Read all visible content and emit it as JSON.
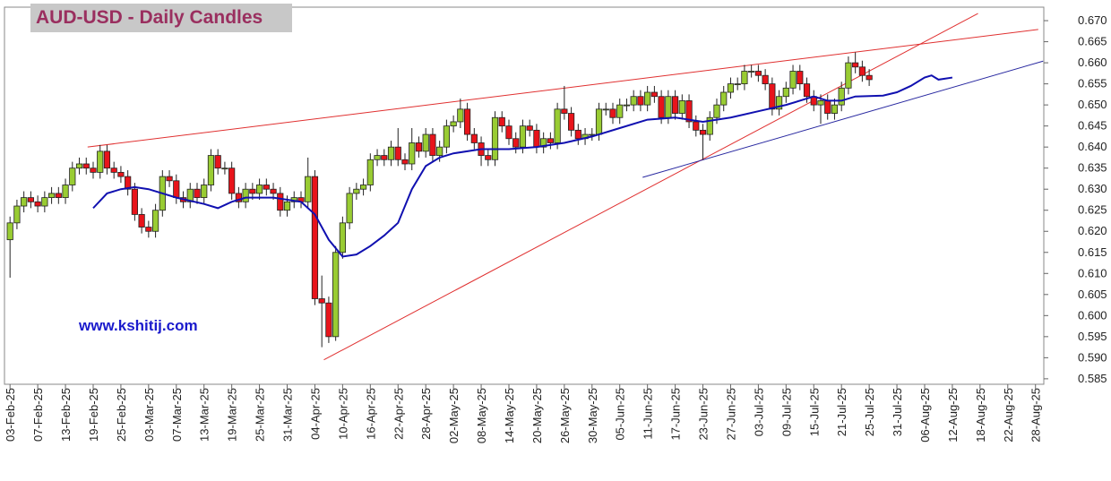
{
  "chart_data": {
    "type": "candlestick",
    "title": "AUD-USD - Daily Candles",
    "watermark": "www.kshitij.com",
    "xlim": [
      -0.8,
      149.2
    ],
    "ylim": [
      0.5837,
      0.6732
    ],
    "yticks": [
      0.585,
      {
        "value": 0.59,
        "label": "0.590"
      },
      0.595,
      {
        "value": 0.6,
        "label": "0.600"
      },
      0.605,
      {
        "value": 0.61,
        "label": "0.610"
      },
      0.615,
      {
        "value": 0.62,
        "label": "0.620"
      },
      0.625,
      {
        "value": 0.63,
        "label": "0.630"
      },
      0.635,
      {
        "value": 0.64,
        "label": "0.640"
      },
      0.645,
      {
        "value": 0.65,
        "label": "0.650"
      },
      0.655,
      {
        "value": 0.66,
        "label": "0.660"
      },
      0.665,
      {
        "value": 0.67,
        "label": "0.670"
      }
    ],
    "xticks": [
      {
        "value": 0,
        "label": "03-Feb-25"
      },
      {
        "value": 4,
        "label": "07-Feb-25"
      },
      {
        "value": 8,
        "label": "13-Feb-25"
      },
      {
        "value": 12,
        "label": "19-Feb-25"
      },
      {
        "value": 16,
        "label": "25-Feb-25"
      },
      {
        "value": 20,
        "label": "03-Mar-25"
      },
      {
        "value": 24,
        "label": "07-Mar-25"
      },
      {
        "value": 28,
        "label": "13-Mar-25"
      },
      {
        "value": 32,
        "label": "19-Mar-25"
      },
      {
        "value": 36,
        "label": "25-Mar-25"
      },
      {
        "value": 40,
        "label": "31-Mar-25"
      },
      {
        "value": 44,
        "label": "04-Apr-25"
      },
      {
        "value": 48,
        "label": "10-Apr-25"
      },
      {
        "value": 52,
        "label": "16-Apr-25"
      },
      {
        "value": 56,
        "label": "22-Apr-25"
      },
      {
        "value": 60,
        "label": "28-Apr-25"
      },
      {
        "value": 64,
        "label": "02-May-25"
      },
      {
        "value": 68,
        "label": "08-May-25"
      },
      {
        "value": 72,
        "label": "14-May-25"
      },
      {
        "value": 76,
        "label": "20-May-25"
      },
      {
        "value": 80,
        "label": "26-May-25"
      },
      {
        "value": 84,
        "label": "30-May-25"
      },
      {
        "value": 88,
        "label": "05-Jun-25"
      },
      {
        "value": 92,
        "label": "11-Jun-25"
      },
      {
        "value": 96,
        "label": "17-Jun-25"
      },
      {
        "value": 100,
        "label": "23-Jun-25"
      },
      {
        "value": 104,
        "label": "27-Jun-25"
      },
      {
        "value": 108,
        "label": "03-Jul-25"
      },
      {
        "value": 112,
        "label": "09-Jul-25"
      },
      {
        "value": 116,
        "label": "15-Jul-25"
      },
      {
        "value": 120,
        "label": "21-Jul-25"
      },
      {
        "value": 124,
        "label": "25-Jul-25"
      },
      {
        "value": 128,
        "label": "31-Jul-25"
      },
      {
        "value": 132,
        "label": "06-Aug-25"
      },
      {
        "value": 136,
        "label": "12-Aug-25"
      },
      {
        "value": 140,
        "label": "18-Aug-25"
      },
      {
        "value": 144,
        "label": "22-Aug-25"
      },
      {
        "value": 148,
        "label": "28-Aug-25"
      }
    ],
    "up_color": "#99cc33",
    "down_color": "#e8141b",
    "x": [
      0,
      1,
      2,
      3,
      4,
      5,
      6,
      7,
      8,
      9,
      10,
      11,
      12,
      13,
      14,
      15,
      16,
      17,
      18,
      19,
      20,
      21,
      22,
      23,
      24,
      25,
      26,
      27,
      28,
      29,
      30,
      31,
      32,
      33,
      34,
      35,
      36,
      37,
      38,
      39,
      40,
      41,
      42,
      43,
      44,
      45,
      46,
      47,
      48,
      49,
      50,
      51,
      52,
      53,
      54,
      55,
      56,
      57,
      58,
      59,
      60,
      61,
      62,
      63,
      64,
      65,
      66,
      67,
      68,
      69,
      70,
      71,
      72,
      73,
      74,
      75,
      76,
      77,
      78,
      79,
      80,
      81,
      82,
      83,
      84,
      85,
      86,
      87,
      88,
      89,
      90,
      91,
      92,
      93,
      94,
      95,
      96,
      97,
      98,
      99,
      100,
      101,
      102,
      103,
      104,
      105,
      106,
      107,
      108,
      109,
      110,
      111,
      112,
      113,
      114,
      115,
      116,
      117,
      118,
      119,
      120,
      121,
      122,
      123,
      124
    ],
    "open": [
      0.618,
      0.622,
      0.626,
      0.628,
      0.627,
      0.626,
      0.628,
      0.629,
      0.628,
      0.631,
      0.635,
      0.636,
      0.635,
      0.634,
      0.639,
      0.635,
      0.634,
      0.633,
      0.63,
      0.624,
      0.621,
      0.62,
      0.625,
      0.633,
      0.632,
      0.628,
      0.627,
      0.63,
      0.628,
      0.631,
      0.638,
      0.635,
      0.635,
      0.629,
      0.627,
      0.63,
      0.629,
      0.631,
      0.63,
      0.629,
      0.625,
      0.627,
      0.628,
      0.627,
      0.633,
      0.604,
      0.603,
      0.595,
      0.615,
      0.622,
      0.629,
      0.63,
      0.631,
      0.637,
      0.638,
      0.637,
      0.64,
      0.637,
      0.636,
      0.641,
      0.639,
      0.643,
      0.638,
      0.64,
      0.645,
      0.646,
      0.649,
      0.643,
      0.641,
      0.638,
      0.637,
      0.647,
      0.645,
      0.642,
      0.64,
      0.645,
      0.644,
      0.64,
      0.642,
      0.641,
      0.649,
      0.648,
      0.644,
      0.642,
      0.643,
      0.643,
      0.649,
      0.649,
      0.647,
      0.65,
      0.65,
      0.652,
      0.65,
      0.653,
      0.652,
      0.647,
      0.652,
      0.648,
      0.651,
      0.646,
      0.644,
      0.643,
      0.647,
      0.65,
      0.653,
      0.655,
      0.655,
      0.658,
      0.658,
      0.657,
      0.655,
      0.649,
      0.652,
      0.654,
      0.658,
      0.655,
      0.652,
      0.65,
      0.651,
      0.648,
      0.65,
      0.654,
      0.66,
      0.659,
      0.657
    ],
    "high": [
      0.6235,
      0.6275,
      0.6295,
      0.6295,
      0.6285,
      0.6295,
      0.6305,
      0.6305,
      0.6325,
      0.6365,
      0.6375,
      0.6375,
      0.6365,
      0.6405,
      0.6405,
      0.6365,
      0.6355,
      0.6345,
      0.6315,
      0.6255,
      0.6225,
      0.6265,
      0.6345,
      0.6345,
      0.6335,
      0.6295,
      0.6315,
      0.6315,
      0.6325,
      0.6395,
      0.6395,
      0.6365,
      0.6365,
      0.6305,
      0.6315,
      0.6315,
      0.6325,
      0.6325,
      0.6315,
      0.6305,
      0.6285,
      0.6295,
      0.6295,
      0.6375,
      0.6345,
      0.6095,
      0.6045,
      0.6165,
      0.6235,
      0.6305,
      0.6315,
      0.6325,
      0.6385,
      0.6395,
      0.6395,
      0.6415,
      0.6445,
      0.6385,
      0.6445,
      0.6425,
      0.6445,
      0.6445,
      0.6415,
      0.6465,
      0.6475,
      0.6515,
      0.6505,
      0.6445,
      0.6425,
      0.6395,
      0.6485,
      0.6485,
      0.6465,
      0.6435,
      0.6465,
      0.6465,
      0.6455,
      0.6435,
      0.6435,
      0.6505,
      0.6545,
      0.6495,
      0.6455,
      0.6445,
      0.6445,
      0.6505,
      0.6505,
      0.6505,
      0.6515,
      0.6515,
      0.6535,
      0.6535,
      0.6545,
      0.6545,
      0.6535,
      0.6535,
      0.6535,
      0.6525,
      0.6525,
      0.6475,
      0.6455,
      0.6485,
      0.6515,
      0.6545,
      0.6565,
      0.6565,
      0.6595,
      0.6595,
      0.6595,
      0.6585,
      0.6565,
      0.6535,
      0.6555,
      0.6595,
      0.6595,
      0.6565,
      0.6535,
      0.6525,
      0.6525,
      0.6515,
      0.6555,
      0.6615,
      0.6625,
      0.6605,
      0.6585
    ],
    "low": [
      0.609,
      0.6205,
      0.6245,
      0.6255,
      0.6245,
      0.6245,
      0.6265,
      0.6265,
      0.6265,
      0.6295,
      0.6335,
      0.6335,
      0.6325,
      0.6325,
      0.6335,
      0.6325,
      0.6315,
      0.6285,
      0.6225,
      0.6195,
      0.6185,
      0.6185,
      0.6235,
      0.6305,
      0.6265,
      0.6255,
      0.6255,
      0.6265,
      0.6265,
      0.6295,
      0.6335,
      0.6335,
      0.6275,
      0.6255,
      0.6255,
      0.6275,
      0.6275,
      0.6285,
      0.6275,
      0.6235,
      0.6235,
      0.6255,
      0.6255,
      0.6255,
      0.6025,
      0.5925,
      0.5935,
      0.594,
      0.6135,
      0.6205,
      0.6275,
      0.6285,
      0.6295,
      0.6355,
      0.6355,
      0.6355,
      0.6355,
      0.6345,
      0.6345,
      0.6375,
      0.6375,
      0.6365,
      0.6365,
      0.6385,
      0.6435,
      0.6445,
      0.6415,
      0.6395,
      0.6355,
      0.6355,
      0.6355,
      0.6435,
      0.6405,
      0.6385,
      0.6385,
      0.6425,
      0.6385,
      0.6385,
      0.6395,
      0.6395,
      0.6465,
      0.6425,
      0.6405,
      0.6405,
      0.6415,
      0.6415,
      0.6475,
      0.6455,
      0.6455,
      0.6485,
      0.6485,
      0.6485,
      0.6485,
      0.6505,
      0.6455,
      0.6455,
      0.6465,
      0.6465,
      0.6445,
      0.6425,
      0.637,
      0.6415,
      0.6455,
      0.6485,
      0.6515,
      0.6535,
      0.6535,
      0.6565,
      0.6555,
      0.6535,
      0.6475,
      0.6475,
      0.6505,
      0.6525,
      0.6535,
      0.6505,
      0.6485,
      0.6455,
      0.6465,
      0.6465,
      0.6485,
      0.6525,
      0.6575,
      0.6555,
      0.6545
    ],
    "close": [
      0.622,
      0.626,
      0.628,
      0.627,
      0.626,
      0.628,
      0.629,
      0.628,
      0.631,
      0.635,
      0.636,
      0.635,
      0.634,
      0.639,
      0.635,
      0.634,
      0.633,
      0.63,
      0.624,
      0.621,
      0.62,
      0.625,
      0.633,
      0.632,
      0.628,
      0.627,
      0.63,
      0.628,
      0.631,
      0.638,
      0.635,
      0.635,
      0.629,
      0.627,
      0.63,
      0.629,
      0.631,
      0.63,
      0.629,
      0.625,
      0.627,
      0.628,
      0.627,
      0.633,
      0.604,
      0.603,
      0.595,
      0.615,
      0.622,
      0.629,
      0.63,
      0.631,
      0.637,
      0.638,
      0.637,
      0.64,
      0.637,
      0.636,
      0.641,
      0.639,
      0.643,
      0.638,
      0.64,
      0.645,
      0.646,
      0.649,
      0.643,
      0.641,
      0.638,
      0.637,
      0.647,
      0.645,
      0.642,
      0.64,
      0.645,
      0.644,
      0.64,
      0.642,
      0.641,
      0.649,
      0.648,
      0.644,
      0.642,
      0.643,
      0.643,
      0.649,
      0.649,
      0.647,
      0.65,
      0.65,
      0.652,
      0.65,
      0.653,
      0.652,
      0.647,
      0.652,
      0.648,
      0.651,
      0.646,
      0.644,
      0.643,
      0.647,
      0.65,
      0.653,
      0.655,
      0.655,
      0.658,
      0.658,
      0.657,
      0.655,
      0.649,
      0.652,
      0.654,
      0.658,
      0.655,
      0.652,
      0.65,
      0.651,
      0.648,
      0.65,
      0.654,
      0.66,
      0.659,
      0.657,
      0.656
    ],
    "moving_average": {
      "color": "#1010b0",
      "x": [
        12,
        14,
        16,
        18,
        20,
        24,
        28,
        30,
        32,
        34,
        38,
        42,
        44,
        46,
        48,
        50,
        52,
        54,
        56,
        58,
        60,
        62,
        64,
        68,
        72,
        76,
        80,
        84,
        88,
        92,
        96,
        100,
        104,
        108,
        112,
        116,
        118,
        120,
        122,
        126,
        128,
        130,
        132,
        133,
        134,
        136
      ],
      "values": [
        0.6255,
        0.629,
        0.63,
        0.6305,
        0.63,
        0.628,
        0.6265,
        0.6255,
        0.627,
        0.628,
        0.628,
        0.627,
        0.624,
        0.618,
        0.614,
        0.6145,
        0.6165,
        0.619,
        0.622,
        0.63,
        0.6355,
        0.6375,
        0.6385,
        0.6395,
        0.6395,
        0.64,
        0.641,
        0.6425,
        0.6445,
        0.6465,
        0.647,
        0.646,
        0.647,
        0.6485,
        0.65,
        0.652,
        0.651,
        0.651,
        0.652,
        0.6522,
        0.653,
        0.6545,
        0.6565,
        0.657,
        0.656,
        0.6565
      ]
    },
    "trend_lines": [
      {
        "color": "#e03030",
        "x": [
          11.2,
          148.4
        ],
        "values": [
          0.64,
          0.6679
        ]
      },
      {
        "color": "#e03030",
        "x": [
          45.3,
          139.7
        ],
        "values": [
          0.5895,
          0.6717
        ]
      },
      {
        "color": "#2828a0",
        "x": [
          91.3,
          149.1
        ],
        "values": [
          0.6328,
          0.6604
        ]
      }
    ]
  }
}
